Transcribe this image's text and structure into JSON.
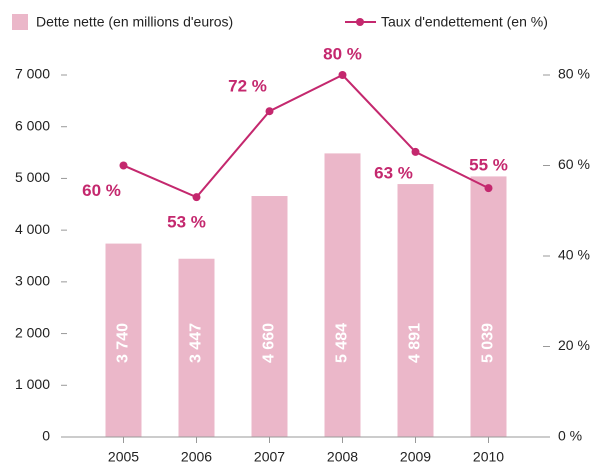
{
  "chart_data": {
    "type": "bar_line",
    "categories": [
      "2005",
      "2006",
      "2007",
      "2008",
      "2009",
      "2010"
    ],
    "series": [
      {
        "name": "Dette nette (en millions d'euros)",
        "color": "#ebb7c9",
        "type": "bar",
        "values": [
          3740,
          3447,
          4660,
          5484,
          4891,
          5039
        ],
        "value_labels": [
          "3 740",
          "3 447",
          "4 660",
          "5 484",
          "4 891",
          "5 039"
        ]
      },
      {
        "name": "Taux d'endettement (en %)",
        "color": "#c4286e",
        "type": "line",
        "axis": "y2",
        "values": [
          60,
          53,
          72,
          80,
          63,
          55
        ],
        "value_labels": [
          "60 %",
          "53 %",
          "72 %",
          "80 %",
          "63 %",
          "55 %"
        ]
      }
    ],
    "ylim": [
      0,
      7000
    ],
    "yticks": [
      0,
      {
        "value": 1000,
        "label": "1 000"
      },
      {
        "value": 2000,
        "label": "2 000"
      },
      {
        "value": 3000,
        "label": "3 000"
      },
      {
        "value": 4000,
        "label": "4 000"
      },
      {
        "value": 5000,
        "label": "5 000"
      },
      {
        "value": 6000,
        "label": "6 000"
      },
      {
        "value": 7000,
        "label": "7 000"
      }
    ],
    "y2lim": [
      0,
      80
    ],
    "y2ticks": [
      {
        "value": 0,
        "label": "0 %"
      },
      {
        "value": 20,
        "label": "20 %"
      },
      {
        "value": 40,
        "label": "40 %"
      },
      {
        "value": 60,
        "label": "60 %"
      },
      {
        "value": 80,
        "label": "80 %"
      }
    ],
    "legend": "top"
  }
}
